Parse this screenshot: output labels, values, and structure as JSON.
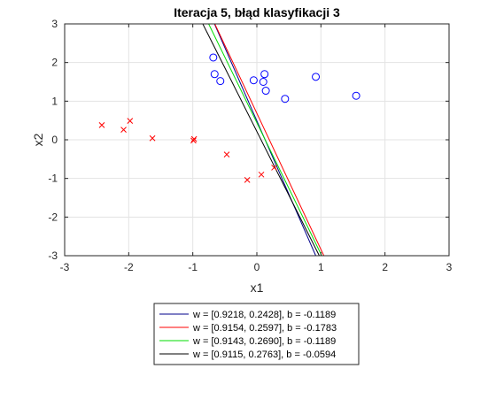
{
  "chart_data": {
    "type": "scatter",
    "title": "Iteracja 5, błąd klasyfikacji 3",
    "xlabel": "x1",
    "ylabel": "x2",
    "xlim": [
      -3,
      3
    ],
    "ylim": [
      -3,
      3
    ],
    "xticks": [
      "-3",
      "-2",
      "-1",
      "0",
      "1",
      "2",
      "3"
    ],
    "yticks": [
      "-3",
      "-2",
      "-1",
      "0",
      "1",
      "2",
      "3"
    ],
    "grid": true,
    "legend_position": "bottom-outside",
    "class_positive": {
      "marker": "circle",
      "color": "#0000ff",
      "points": [
        [
          -0.68,
          2.13
        ],
        [
          -0.66,
          1.7
        ],
        [
          -0.57,
          1.52
        ],
        [
          -0.05,
          1.54
        ],
        [
          0.1,
          1.5
        ],
        [
          0.12,
          1.7
        ],
        [
          0.14,
          1.27
        ],
        [
          0.44,
          1.06
        ],
        [
          0.92,
          1.63
        ],
        [
          1.55,
          1.14
        ]
      ]
    },
    "class_negative": {
      "marker": "x",
      "color": "#ff0000",
      "points": [
        [
          -2.42,
          0.38
        ],
        [
          -2.08,
          0.26
        ],
        [
          -1.98,
          0.49
        ],
        [
          -1.63,
          0.04
        ],
        [
          -0.99,
          -0.02
        ],
        [
          -0.98,
          0.02
        ],
        [
          -0.47,
          -0.38
        ],
        [
          -0.15,
          -1.04
        ],
        [
          0.07,
          -0.9
        ],
        [
          0.27,
          -0.72
        ]
      ]
    },
    "series": [
      {
        "name": "w = [0.9218, 0.2428], b = -0.1189",
        "color": "#00008b",
        "w": [
          0.9218,
          0.2428
        ],
        "b": -0.1189
      },
      {
        "name": "w = [0.9154, 0.2597], b = -0.1783",
        "color": "#ff0000",
        "w": [
          0.9154,
          0.2597
        ],
        "b": -0.1783
      },
      {
        "name": "w = [0.9143, 0.2690], b = -0.1189",
        "color": "#00dd00",
        "w": [
          0.9143,
          0.269
        ],
        "b": -0.1189
      },
      {
        "name": "w = [0.9115, 0.2763], b = -0.0594",
        "color": "#000000",
        "w": [
          0.9115,
          0.2763
        ],
        "b": -0.0594
      }
    ]
  }
}
